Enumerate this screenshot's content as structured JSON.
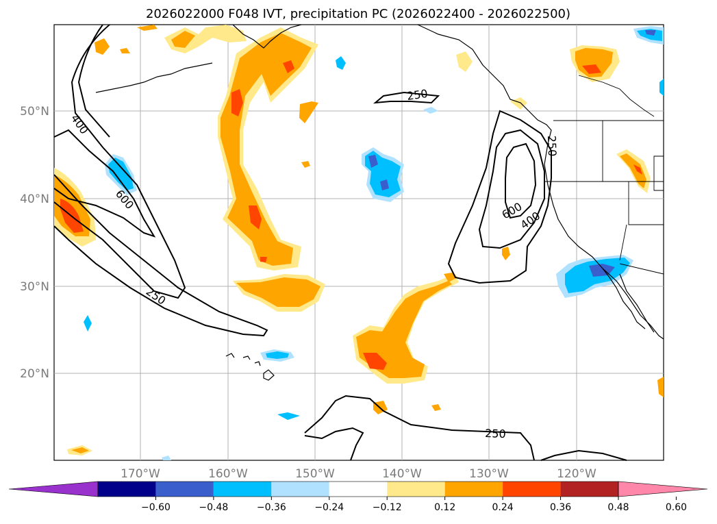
{
  "title": "2026022000 F048 IVT, precipitation PC (2026022400 - 2026022500)",
  "map": {
    "lat_labels": [
      "50°N",
      "40°N",
      "30°N",
      "20°N"
    ],
    "lon_labels": [
      "170°W",
      "160°W",
      "150°W",
      "140°W",
      "130°W",
      "120°W"
    ],
    "ivt_contour_labels": [
      "400",
      "600",
      "250",
      "250",
      "250",
      "600",
      "400",
      "250"
    ]
  },
  "colorbar": {
    "tick_labels": [
      "−0.60",
      "−0.48",
      "−0.36",
      "−0.24",
      "−0.12",
      "0.12",
      "0.24",
      "0.36",
      "0.48",
      "0.60"
    ],
    "colors": [
      "#9932cc",
      "#00008b",
      "#3a5fcd",
      "#00bfff",
      "#b0e2ff",
      "#ffffff",
      "#ffe98a",
      "#ffa500",
      "#ff4500",
      "#b22222",
      "#ff88aa"
    ]
  }
}
